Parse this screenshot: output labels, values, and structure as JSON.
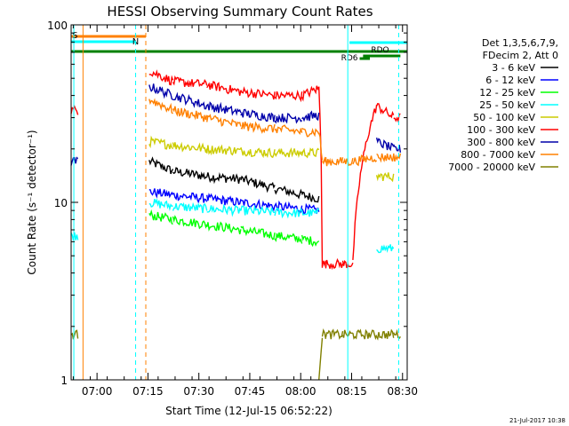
{
  "chart_data": {
    "type": "line",
    "title": "HESSI Observing Summary Count Rates",
    "xlabel": "Start Time (12-Jul-15 06:52:22)",
    "ylabel": "Count Rate (s⁻¹ detector⁻¹)",
    "yscale": "log",
    "ylim": [
      1,
      100
    ],
    "xlim_minutes": [
      0,
      99
    ],
    "x_tick_labels": [
      "07:00",
      "07:15",
      "07:30",
      "07:45",
      "08:00",
      "08:15",
      "08:30"
    ],
    "x_tick_minutes": [
      7.63,
      22.63,
      37.63,
      52.63,
      67.63,
      82.63,
      97.63
    ],
    "y_tick_labels": [
      "1",
      "10",
      "100"
    ],
    "y_tick_values": [
      1,
      10,
      100
    ],
    "legend_header": [
      "Det 1,3,5,6,7,9,",
      "FDecim 2, Att 0"
    ],
    "legend_position": "right",
    "footer_stamp": "21-Jul-2017 10:38",
    "flags": [
      {
        "label": "S",
        "color": "#ff8000"
      },
      {
        "label": "N",
        "color": "#00ffff"
      },
      {
        "label": "RDO",
        "color": "#008000"
      },
      {
        "label": "RD6",
        "color": "#008000"
      }
    ],
    "series": [
      {
        "name": "3 - 6 keV",
        "color": "#000000",
        "x": [
          0,
          2,
          3,
          22,
          23,
          30,
          40,
          50,
          60,
          68,
          73,
          74,
          75,
          80,
          83,
          90,
          95,
          97
        ],
        "y": [
          null,
          null,
          null,
          null,
          17,
          15,
          14,
          13.5,
          12,
          11,
          10.5,
          null,
          null,
          null,
          null,
          null,
          null,
          null
        ]
      },
      {
        "name": "6 - 12 keV",
        "color": "#0000ff",
        "x": [
          0,
          2,
          3,
          22,
          23,
          30,
          40,
          50,
          60,
          68,
          73,
          74,
          75,
          80,
          83,
          90,
          95,
          97
        ],
        "y": [
          null,
          null,
          null,
          null,
          11.5,
          11,
          10.5,
          10,
          9.5,
          9.2,
          9,
          null,
          null,
          null,
          null,
          null,
          null,
          null
        ]
      },
      {
        "name": "12 - 25 keV",
        "color": "#00ff00",
        "x": [
          0,
          2,
          3,
          22,
          23,
          30,
          40,
          50,
          60,
          68,
          73,
          74,
          75,
          80,
          83,
          90,
          95,
          97
        ],
        "y": [
          null,
          null,
          null,
          null,
          8.5,
          8,
          7.5,
          7,
          6.5,
          6.2,
          6,
          null,
          null,
          null,
          null,
          null,
          null,
          null
        ]
      },
      {
        "name": "25 - 50 keV",
        "color": "#00ffff",
        "x": [
          0,
          2,
          3,
          22,
          23,
          30,
          40,
          50,
          60,
          68,
          73,
          74,
          75,
          80,
          83,
          90,
          95,
          97
        ],
        "y": [
          6.5,
          6.5,
          null,
          null,
          10,
          9.5,
          9.2,
          9,
          8.8,
          8.7,
          8.7,
          null,
          null,
          null,
          null,
          5.5,
          5.5,
          null
        ]
      },
      {
        "name": "50 - 100 keV",
        "color": "#cccc00",
        "x": [
          0,
          2,
          3,
          22,
          23,
          30,
          40,
          50,
          60,
          68,
          73,
          74,
          75,
          80,
          83,
          90,
          95,
          97
        ],
        "y": [
          null,
          null,
          null,
          null,
          22,
          21,
          20,
          19.5,
          19,
          19,
          19,
          null,
          null,
          null,
          null,
          14,
          14,
          null
        ]
      },
      {
        "name": "100 - 300 keV",
        "color": "#ff0000",
        "x": [
          0,
          2,
          3,
          22,
          23,
          30,
          40,
          50,
          60,
          68,
          73,
          74,
          75,
          80,
          83,
          90,
          95,
          97
        ],
        "y": [
          33,
          33,
          null,
          null,
          55,
          48,
          46,
          42,
          40,
          40,
          44,
          4.5,
          4.5,
          4.5,
          4.5,
          35,
          30,
          30
        ]
      },
      {
        "name": "300 - 800 keV",
        "color": "#0000aa",
        "x": [
          0,
          2,
          3,
          22,
          23,
          30,
          40,
          50,
          60,
          68,
          73,
          74,
          75,
          80,
          83,
          90,
          95,
          97
        ],
        "y": [
          17,
          17,
          null,
          null,
          45,
          40,
          35,
          32,
          30,
          30,
          31,
          null,
          null,
          null,
          null,
          22,
          20,
          20
        ]
      },
      {
        "name": "800 - 7000 keV",
        "color": "#ff8000",
        "x": [
          0,
          2,
          3,
          22,
          23,
          30,
          40,
          50,
          60,
          68,
          73,
          74,
          75,
          80,
          83,
          90,
          95,
          97
        ],
        "y": [
          null,
          null,
          null,
          null,
          38,
          33,
          30,
          27,
          26,
          25,
          25,
          17,
          17,
          17,
          17,
          18,
          18,
          18
        ]
      },
      {
        "name": "7000 - 20000 keV",
        "color": "#808000",
        "x": [
          0,
          2,
          3,
          22,
          23,
          30,
          40,
          50,
          60,
          68,
          73,
          74,
          75,
          80,
          83,
          90,
          95,
          97
        ],
        "y": [
          1.8,
          1.8,
          null,
          null,
          null,
          null,
          null,
          null,
          null,
          null,
          1,
          1.8,
          1.8,
          1.8,
          1.8,
          1.8,
          1.8,
          1.8
        ]
      }
    ]
  }
}
